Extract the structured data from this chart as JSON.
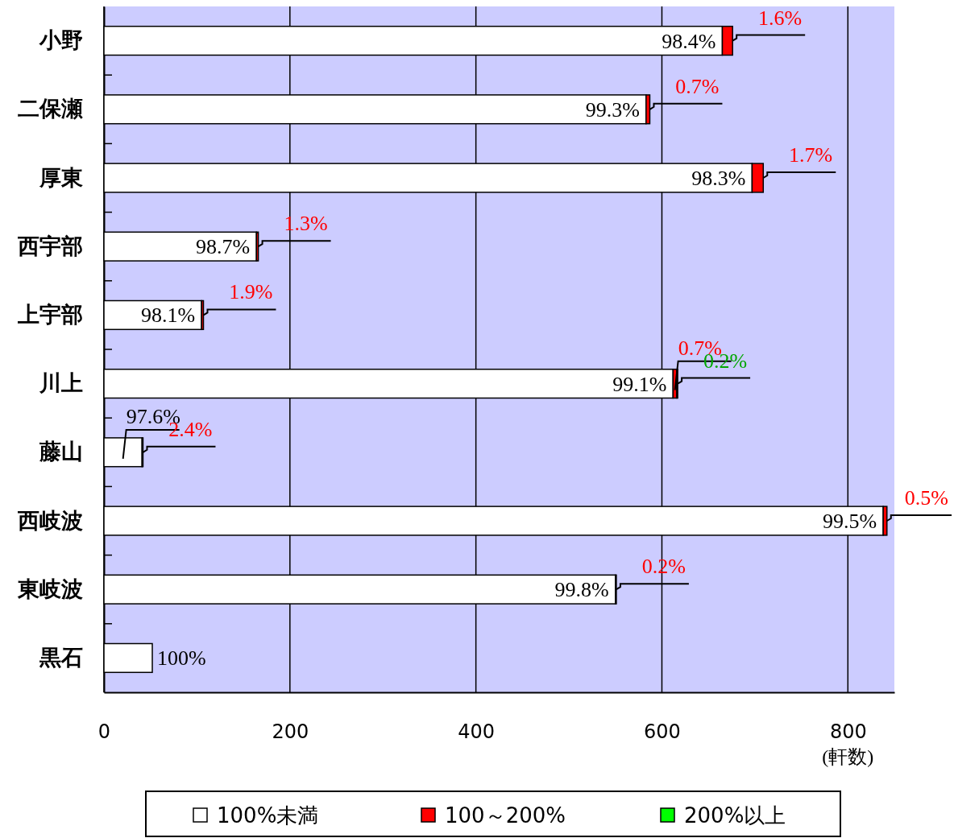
{
  "chart_data": {
    "type": "bar",
    "orientation": "horizontal",
    "stacked": true,
    "categories": [
      "小野",
      "二保瀬",
      "厚東",
      "西宇部",
      "上宇部",
      "川上",
      "藤山",
      "西岐波",
      "東岐波",
      "黒石"
    ],
    "series": [
      {
        "name": "100%未満",
        "color": "#ffffff",
        "values": [
          665,
          583,
          697,
          164,
          105,
          612,
          41,
          838,
          550,
          52
        ]
      },
      {
        "name": "100～200%",
        "color": "#ff0000",
        "values": [
          11,
          4,
          12,
          2,
          2,
          4,
          1,
          4,
          1,
          null
        ]
      },
      {
        "name": "200%以上",
        "color": "#00ff00",
        "values": [
          null,
          null,
          null,
          null,
          null,
          1,
          null,
          null,
          null,
          null
        ]
      }
    ],
    "annotations": [
      {
        "text": "98.4%",
        "x": 665,
        "y": "小野"
      },
      {
        "text": "1.6%",
        "x": 676,
        "y": "小野"
      },
      {
        "text": "99.3%",
        "x": 583,
        "y": "二保瀬"
      },
      {
        "text": "0.7%",
        "x": 587,
        "y": "二保瀬"
      },
      {
        "text": "98.3%",
        "x": 697,
        "y": "厚東"
      },
      {
        "text": "1.7%",
        "x": 709,
        "y": "厚東"
      },
      {
        "text": "98.7%",
        "x": 164,
        "y": "西宇部"
      },
      {
        "text": "1.3%",
        "x": 166,
        "y": "西宇部"
      },
      {
        "text": "98.1%",
        "x": 105,
        "y": "上宇部"
      },
      {
        "text": "1.9%",
        "x": 107,
        "y": "上宇部"
      },
      {
        "text": "99.1%",
        "x": 612,
        "y": "川上"
      },
      {
        "text": "0.7%",
        "x": 616,
        "y": "川上"
      },
      {
        "text": "0.2%",
        "x": 617,
        "y": "川上"
      },
      {
        "text": "97.6%",
        "x": 41,
        "y": "藤山"
      },
      {
        "text": "2.4%",
        "x": 42,
        "y": "藤山"
      },
      {
        "text": "99.5%",
        "x": 838,
        "y": "西岐波"
      },
      {
        "text": "0.5%",
        "x": 842,
        "y": "西岐波"
      },
      {
        "text": "99.8%",
        "x": 550,
        "y": "東岐波"
      },
      {
        "text": "0.2%",
        "x": 551,
        "y": "東岐波"
      },
      {
        "text": "100%",
        "x": 52,
        "y": "黒石"
      }
    ],
    "xlim": [
      0,
      850
    ],
    "xticks": [
      0,
      200,
      400,
      600,
      800
    ],
    "xlabel": "(軒数)",
    "grid": "x",
    "legend": "bottom"
  }
}
